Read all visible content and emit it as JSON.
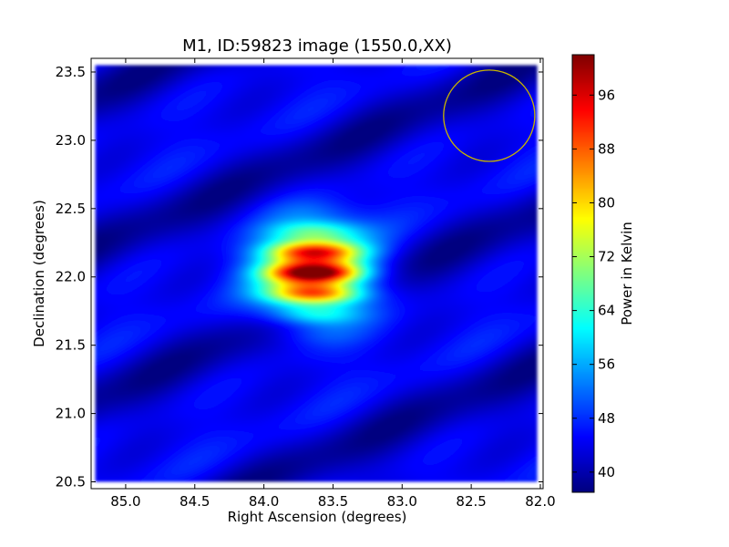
{
  "chart_data": {
    "type": "heatmap",
    "title": "M1, ID:59823 image (1550.0,XX)",
    "xlabel": "Right Ascension (degrees)",
    "ylabel": "Declination (degrees)",
    "xlim": [
      85.25,
      81.98
    ],
    "ylim": [
      20.45,
      23.6
    ],
    "x_inverted": true,
    "xticks": [
      85.0,
      84.5,
      84.0,
      83.5,
      83.0,
      82.5,
      82.0
    ],
    "xtick_labels": [
      "85.0",
      "84.5",
      "84.0",
      "83.5",
      "83.0",
      "82.5",
      "82.0"
    ],
    "yticks": [
      20.5,
      21.0,
      21.5,
      22.0,
      22.5,
      23.0,
      23.5
    ],
    "ytick_labels": [
      "20.5",
      "21.0",
      "21.5",
      "22.0",
      "22.5",
      "23.0",
      "23.5"
    ],
    "image_extent_ra": [
      85.22,
      82.02
    ],
    "image_extent_dec": [
      20.5,
      23.55
    ],
    "colormap": "jet",
    "color_range": [
      37,
      102
    ],
    "background_level": 43,
    "source": {
      "ra": 83.63,
      "dec": 22.03,
      "peak": 102,
      "width_ra": 0.37,
      "width_dec": 0.32
    },
    "beam_circle": {
      "ra": 82.37,
      "dec": 23.18,
      "radius_deg": 0.33,
      "color": "#c8b400"
    },
    "colorbar": {
      "label": "Power in Kelvin",
      "ticks": [
        40,
        48,
        56,
        64,
        72,
        80,
        88,
        96
      ],
      "tick_labels": [
        "40",
        "48",
        "56",
        "64",
        "72",
        "80",
        "88",
        "96"
      ],
      "min": 37,
      "max": 102
    },
    "grid": false
  }
}
